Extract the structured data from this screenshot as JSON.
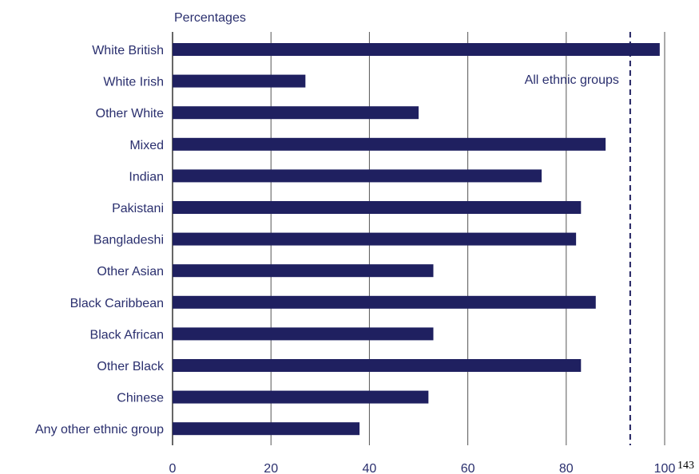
{
  "chart_data": {
    "type": "bar",
    "orientation": "horizontal",
    "title": "",
    "ylabel": "Percentages",
    "categories": [
      "White British",
      "White Irish",
      "Other White",
      "Mixed",
      "Indian",
      "Pakistani",
      "Bangladeshi",
      "Other Asian",
      "Black Caribbean",
      "Black African",
      "Other Black",
      "Chinese",
      "Any other ethnic group"
    ],
    "values": [
      99,
      27,
      50,
      88,
      75,
      83,
      82,
      53,
      86,
      53,
      83,
      52,
      38
    ],
    "xlim": [
      0,
      100
    ],
    "xticks": [
      0,
      20,
      40,
      60,
      80,
      100
    ],
    "xtick_labels": [
      "0",
      "20",
      "40",
      "60",
      "80",
      "100"
    ],
    "grid": "vertical",
    "reference_line": {
      "label": "All ethnic groups",
      "value": 93,
      "style": "dashed"
    },
    "colors": {
      "bar": "#1f2060",
      "text": "#2a2f6e",
      "grid": "#555555"
    }
  },
  "page_number": "143"
}
